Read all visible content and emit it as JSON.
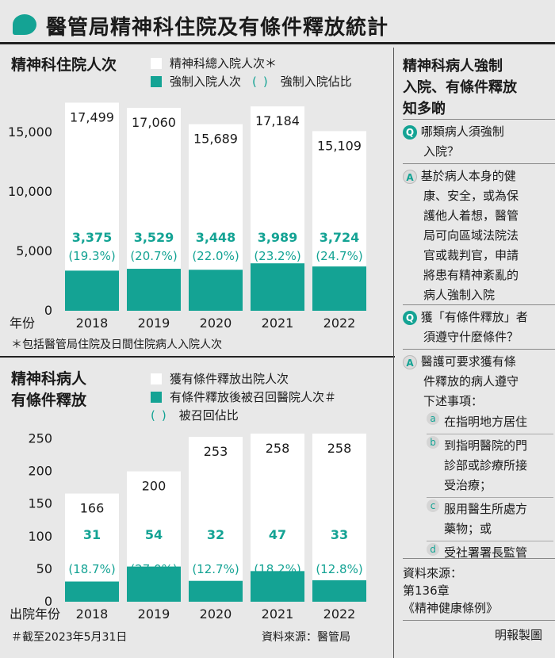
{
  "header": {
    "title": "醫管局精神科住院及有條件釋放統計"
  },
  "chart1": {
    "title": "精神科住院人次",
    "legend_total": "精神科總入院人次＊",
    "legend_compulsory": "強制入院人次",
    "legend_ratio": "強制入院佔比",
    "x_axis_label": "年份",
    "footnote": "＊包括醫管局住院及日間住院病人入院人次"
  },
  "chart2": {
    "title_line1": "精神科病人",
    "title_line2": "有條件釋放",
    "legend_total": "獲有條件釋放出院人次",
    "legend_recalled": "有條件釋放後被召回醫院人次＃",
    "legend_ratio": "被召回佔比",
    "x_axis_label": "出院年份",
    "footnote": "＃截至2023年5月31日",
    "source": "資料來源：醫管局"
  },
  "qa": {
    "title_lines": [
      "精神科病人強制",
      "入院、有條件釋放",
      "知多啲"
    ],
    "q1": [
      "哪類病人須強制",
      "入院？"
    ],
    "a1": [
      "基於病人本身的健",
      "康、安全，或為保",
      "護他人着想，醫管",
      "局可向區域法院法",
      "官或裁判官，申請",
      "將患有精神紊亂的",
      "病人強制入院"
    ],
    "q2": [
      "獲「有條件釋放」者",
      "須遵守什麼條件？"
    ],
    "a2": [
      "醫護可要求獲有條",
      "件釋放的病人遵守",
      "下述事項："
    ],
    "items": [
      {
        "letter": "a",
        "lines": [
          "在指明地方居住"
        ]
      },
      {
        "letter": "b",
        "lines": [
          "到指明醫院的門",
          "診部或診療所接",
          "受治療；"
        ]
      },
      {
        "letter": "c",
        "lines": [
          "服用醫生所處方",
          "藥物；或"
        ]
      },
      {
        "letter": "d",
        "lines": [
          "受社署署長監管"
        ]
      }
    ],
    "source_lines": [
      "資料來源：",
      "第136章",
      "《精神健康條例》"
    ]
  },
  "credit": "明報製圖",
  "colors": {
    "accent": "#14a394",
    "bar_total": "#ffffff",
    "background": "#e8e8e8"
  },
  "chart_data": [
    {
      "type": "bar",
      "title": "精神科住院人次",
      "categories": [
        "2018",
        "2019",
        "2020",
        "2021",
        "2022"
      ],
      "series": [
        {
          "name": "精神科總入院人次＊",
          "values": [
            17499,
            17060,
            15689,
            17184,
            15109
          ]
        },
        {
          "name": "強制入院人次",
          "values": [
            3375,
            3529,
            3448,
            3989,
            3724
          ]
        }
      ],
      "value_labels_total": [
        "17,499",
        "17,060",
        "15,689",
        "17,184",
        "15,109"
      ],
      "value_labels_sub": [
        "3,375",
        "3,529",
        "3,448",
        "3,989",
        "3,724"
      ],
      "ratio_labels": [
        "(19.3%)",
        "(20.7%)",
        "(22.0%)",
        "(23.2%)",
        "(24.7%)"
      ],
      "xlabel": "年份",
      "ylim": [
        0,
        17500
      ],
      "yticks": [
        0,
        5000,
        10000,
        15000
      ],
      "ytick_labels": [
        "0",
        "5,000",
        "10,000",
        "15,000"
      ],
      "legend": "top-right",
      "grid": false
    },
    {
      "type": "bar",
      "title": "精神科病人有條件釋放",
      "categories": [
        "2018",
        "2019",
        "2020",
        "2021",
        "2022"
      ],
      "series": [
        {
          "name": "獲有條件釋放出院人次",
          "values": [
            166,
            200,
            253,
            258,
            258
          ]
        },
        {
          "name": "有條件釋放後被召回醫院人次＃",
          "values": [
            31,
            54,
            32,
            47,
            33
          ]
        }
      ],
      "value_labels_total": [
        "166",
        "200",
        "253",
        "258",
        "258"
      ],
      "value_labels_sub": [
        "31",
        "54",
        "32",
        "47",
        "33"
      ],
      "ratio_labels": [
        "(18.7%)",
        "(27.0%)",
        "(12.7%)",
        "(18.2%)",
        "(12.8%)"
      ],
      "xlabel": "出院年份",
      "ylim": [
        0,
        250
      ],
      "yticks": [
        0,
        50,
        100,
        150,
        200,
        250
      ],
      "ytick_labels": [
        "0",
        "50",
        "100",
        "150",
        "200",
        "250"
      ],
      "legend": "top-right",
      "grid": false
    }
  ]
}
